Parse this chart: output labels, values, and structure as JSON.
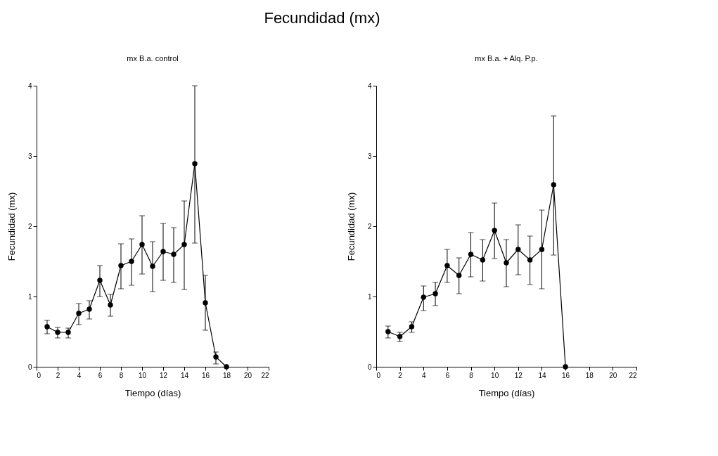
{
  "chart_data": [
    {
      "type": "line",
      "title": "Fecundidad (mx)",
      "subtitle": "mx B.a. control",
      "xlabel": "Tiempo (días)",
      "ylabel": "Fecundidad (mx)",
      "x": [
        1,
        2,
        3,
        4,
        5,
        6,
        7,
        8,
        9,
        10,
        11,
        12,
        13,
        14,
        15,
        16,
        17,
        18
      ],
      "series": [
        {
          "color": "#000000",
          "values": [
            0.57,
            0.49,
            0.49,
            0.76,
            0.82,
            1.23,
            0.88,
            1.44,
            1.5,
            1.74,
            1.43,
            1.64,
            1.6,
            1.74,
            2.89,
            0.91,
            0.14,
            0
          ],
          "errors": [
            [
              0.47,
              0.66
            ],
            [
              0.41,
              0.56
            ],
            [
              0.41,
              0.55
            ],
            [
              0.6,
              0.9
            ],
            [
              0.68,
              0.94
            ],
            [
              1.0,
              1.44
            ],
            [
              0.72,
              1.03
            ],
            [
              1.11,
              1.75
            ],
            [
              1.16,
              1.82
            ],
            [
              1.32,
              2.15
            ],
            [
              1.07,
              1.78
            ],
            [
              1.23,
              2.04
            ],
            [
              1.2,
              1.98
            ],
            [
              1.1,
              2.36
            ],
            [
              1.76,
              4.0
            ],
            [
              0.52,
              1.3
            ],
            [
              0.04,
              0.21
            ],
            null
          ]
        }
      ],
      "xlim": [
        0,
        22
      ],
      "xticks": [
        0,
        2,
        4,
        6,
        8,
        10,
        12,
        14,
        16,
        18,
        20,
        22
      ],
      "ylim": [
        0,
        4
      ],
      "yticks": [
        0,
        1,
        2,
        3,
        4
      ],
      "grid": false,
      "marker": "circle",
      "line_style": "solid"
    },
    {
      "type": "line",
      "subtitle": "mx B.a. + Alq. P.p.",
      "xlabel": "Tiempo (días)",
      "ylabel": "Fecundidad (mx)",
      "x": [
        1,
        2,
        3,
        4,
        5,
        6,
        7,
        8,
        9,
        10,
        11,
        12,
        13,
        14,
        15,
        16
      ],
      "series": [
        {
          "color": "#000000",
          "values": [
            0.5,
            0.43,
            0.57,
            0.99,
            1.04,
            1.44,
            1.3,
            1.6,
            1.52,
            1.94,
            1.48,
            1.67,
            1.52,
            1.67,
            2.59,
            0
          ],
          "errors": [
            [
              0.41,
              0.58
            ],
            [
              0.36,
              0.49
            ],
            [
              0.49,
              0.64
            ],
            [
              0.8,
              1.15
            ],
            [
              0.87,
              1.2
            ],
            [
              1.2,
              1.67
            ],
            [
              1.04,
              1.55
            ],
            [
              1.28,
              1.91
            ],
            [
              1.22,
              1.81
            ],
            [
              1.54,
              2.33
            ],
            [
              1.14,
              1.81
            ],
            [
              1.31,
              2.02
            ],
            [
              1.17,
              1.86
            ],
            [
              1.11,
              2.23
            ],
            [
              1.59,
              3.57
            ],
            null
          ]
        }
      ],
      "xlim": [
        0,
        22
      ],
      "xticks": [
        0,
        2,
        4,
        6,
        8,
        10,
        12,
        14,
        16,
        18,
        20,
        22
      ],
      "ylim": [
        0,
        4
      ],
      "yticks": [
        0,
        1,
        2,
        3,
        4
      ],
      "grid": false,
      "marker": "circle",
      "line_style": "solid"
    }
  ]
}
